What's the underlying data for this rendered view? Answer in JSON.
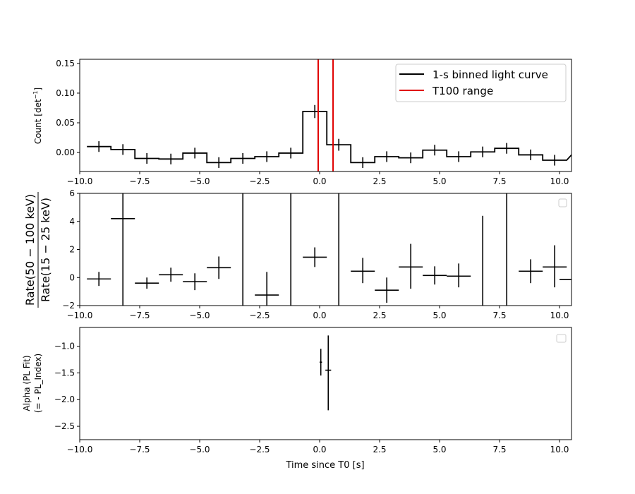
{
  "chart_data": [
    {
      "type": "line",
      "ylabel": "Count [det$^{-1}$]",
      "xlim": [
        -10,
        10.5
      ],
      "ylim": [
        -0.032,
        0.157
      ],
      "xticks": [
        "−10.0",
        "−7.5",
        "−5.0",
        "−2.5",
        "0.0",
        "2.5",
        "5.0",
        "7.5",
        "10.0"
      ],
      "xtick_values": [
        -10,
        -7.5,
        -5,
        -2.5,
        0,
        2.5,
        5,
        7.5,
        10
      ],
      "yticks": [
        "0.00",
        "0.05",
        "0.10",
        "0.15"
      ],
      "ytick_values": [
        0,
        0.05,
        0.1,
        0.15
      ],
      "legend": {
        "placement": "top-right",
        "entries": [
          {
            "label": "1-s binned light curve",
            "color": "#000000"
          },
          {
            "label": "T100 range",
            "color": "#e00000"
          }
        ]
      },
      "series": [
        {
          "name": "1-s binned light curve",
          "color": "#000000",
          "x": [
            -9.2,
            -8.2,
            -7.2,
            -6.2,
            -5.2,
            -4.2,
            -3.2,
            -2.2,
            -1.2,
            -0.2,
            0.8,
            1.8,
            2.8,
            3.8,
            4.8,
            5.8,
            6.8,
            7.8,
            8.8,
            9.8
          ],
          "y": [
            0.01,
            0.005,
            -0.01,
            -0.011,
            -0.001,
            -0.017,
            -0.01,
            -0.007,
            -0.001,
            0.069,
            0.013,
            -0.017,
            -0.007,
            -0.009,
            0.004,
            -0.007,
            0.001,
            0.007,
            -0.004,
            -0.013
          ],
          "yerr": [
            0.009,
            0.009,
            0.009,
            0.009,
            0.009,
            0.009,
            0.009,
            0.009,
            0.009,
            0.011,
            0.01,
            0.009,
            0.009,
            0.009,
            0.009,
            0.009,
            0.009,
            0.009,
            0.009,
            0.009
          ],
          "xerr": 0.5
        },
        {
          "name": "T100 range",
          "color": "#e00000",
          "x": [
            -0.06,
            0.56
          ]
        }
      ]
    },
    {
      "type": "scatter",
      "ylabel_num": "Rate(50 − 100 keV)",
      "ylabel_den": "Rate(15 − 25 keV)",
      "xlim": [
        -10,
        10.5
      ],
      "ylim": [
        -2,
        6
      ],
      "xticks": [
        "−10.0",
        "−7.5",
        "−5.0",
        "−2.5",
        "0.0",
        "2.5",
        "5.0",
        "7.5",
        "10.0"
      ],
      "xtick_values": [
        -10,
        -7.5,
        -5,
        -2.5,
        0,
        2.5,
        5,
        7.5,
        10
      ],
      "yticks": [
        "−2",
        "0",
        "2",
        "4",
        "6"
      ],
      "ytick_values": [
        -2,
        0,
        2,
        4,
        6
      ],
      "legend": {
        "placement": "top-right",
        "entries": []
      },
      "series": [
        {
          "name": "",
          "color": "#000000",
          "xerr": 0.5,
          "points": [
            {
              "x": -9.2,
              "y": -0.1,
              "ylo": -0.6,
              "yhi": 0.4
            },
            {
              "x": -8.2,
              "y": 4.2,
              "ylo": -2.0,
              "yhi": 6.0
            },
            {
              "x": -7.2,
              "y": -0.4,
              "ylo": -0.8,
              "yhi": 0.0
            },
            {
              "x": -6.2,
              "y": 0.2,
              "ylo": -0.3,
              "yhi": 0.7
            },
            {
              "x": -5.2,
              "y": -0.3,
              "ylo": -0.9,
              "yhi": 0.3
            },
            {
              "x": -4.2,
              "y": 0.7,
              "ylo": -0.1,
              "yhi": 1.5
            },
            {
              "x": -3.2,
              "y": null,
              "ylo": -2.0,
              "yhi": 6.0
            },
            {
              "x": -2.2,
              "y": -1.25,
              "ylo": -2.0,
              "yhi": 0.4
            },
            {
              "x": -1.2,
              "y": null,
              "ylo": -2.0,
              "yhi": 6.0
            },
            {
              "x": -0.2,
              "y": 1.45,
              "ylo": 0.75,
              "yhi": 2.15
            },
            {
              "x": 0.8,
              "y": null,
              "ylo": -2.0,
              "yhi": 6.0
            },
            {
              "x": 1.8,
              "y": 0.45,
              "ylo": -0.4,
              "yhi": 1.4
            },
            {
              "x": 2.8,
              "y": -0.9,
              "ylo": -1.8,
              "yhi": 0.0
            },
            {
              "x": 3.8,
              "y": 0.75,
              "ylo": -0.8,
              "yhi": 2.4
            },
            {
              "x": 4.8,
              "y": 0.15,
              "ylo": -0.5,
              "yhi": 0.8
            },
            {
              "x": 5.8,
              "y": 0.1,
              "ylo": -0.7,
              "yhi": 1.0
            },
            {
              "x": 6.8,
              "y": null,
              "ylo": -2.0,
              "yhi": 4.4
            },
            {
              "x": 7.8,
              "y": null,
              "ylo": -2.0,
              "yhi": 6.0
            },
            {
              "x": 8.8,
              "y": 0.45,
              "ylo": -0.4,
              "yhi": 1.3
            },
            {
              "x": 9.8,
              "y": 0.75,
              "ylo": -0.7,
              "yhi": 2.3
            },
            {
              "x": 10.5,
              "y": -0.15,
              "ylo": -0.15,
              "yhi": -0.15
            }
          ]
        }
      ]
    },
    {
      "type": "scatter",
      "ylabel_line1": "Alpha (PL Fit)",
      "ylabel_line2": "(= - PL_Index)",
      "xlabel": "Time since T0 [s]",
      "xlim": [
        -10,
        10.5
      ],
      "ylim": [
        -2.75,
        -0.65
      ],
      "xticks": [
        "−10.0",
        "−7.5",
        "−5.0",
        "−2.5",
        "0.0",
        "2.5",
        "5.0",
        "7.5",
        "10.0"
      ],
      "xtick_values": [
        -10,
        -7.5,
        -5,
        -2.5,
        0,
        2.5,
        5,
        7.5,
        10
      ],
      "yticks": [
        "−2.5",
        "−2.0",
        "−1.5",
        "−1.0"
      ],
      "ytick_values": [
        -2.5,
        -2.0,
        -1.5,
        -1.0
      ],
      "legend": {
        "placement": "top-right",
        "entries": []
      },
      "series": [
        {
          "name": "",
          "color": "#000000",
          "points": [
            {
              "x": 0.05,
              "y": -1.3,
              "xerr": 0.05,
              "ylo": -1.55,
              "yhi": -1.05
            },
            {
              "x": 0.36,
              "y": -1.45,
              "xerr": 0.12,
              "ylo": -2.2,
              "yhi": -0.8
            }
          ]
        }
      ]
    }
  ]
}
